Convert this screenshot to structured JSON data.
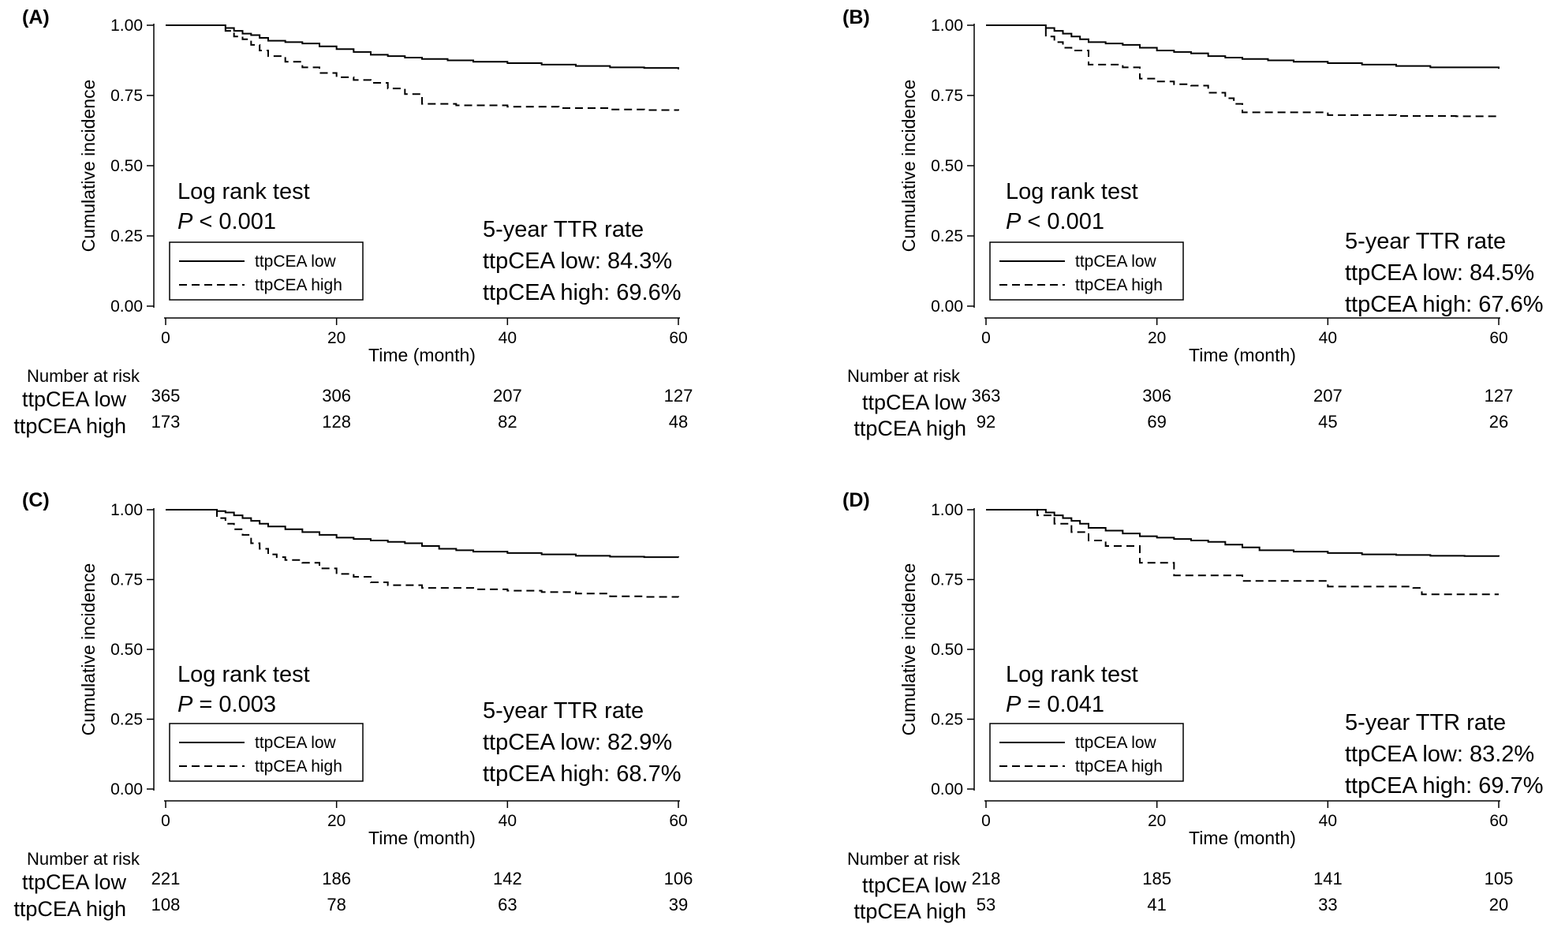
{
  "figure_type": "Kaplan-Meier cumulative incidence curves",
  "colors": {
    "curve": "#000000",
    "axis": "#000000",
    "background": "#ffffff"
  },
  "chart_data": [
    {
      "panel_label": "(A)",
      "type": "line",
      "xlabel": "Time (month)",
      "ylabel": "Cumulative incidence",
      "xlim": [
        0,
        60
      ],
      "ylim": [
        0,
        1
      ],
      "xticks": [
        "0",
        "20",
        "40",
        "60"
      ],
      "yticks": [
        "0.00",
        "0.25",
        "0.50",
        "0.75",
        "1.00"
      ],
      "series": [
        {
          "name": "ttpCEA low",
          "style": "solid",
          "x": [
            0,
            7,
            8,
            9,
            10,
            11,
            12,
            14,
            16,
            18,
            20,
            22,
            24,
            26,
            28,
            30,
            33,
            36,
            40,
            44,
            48,
            52,
            56,
            60
          ],
          "y": [
            1,
            0.99,
            0.98,
            0.97,
            0.965,
            0.955,
            0.945,
            0.94,
            0.935,
            0.925,
            0.915,
            0.905,
            0.895,
            0.89,
            0.885,
            0.88,
            0.875,
            0.87,
            0.865,
            0.86,
            0.855,
            0.85,
            0.848,
            0.843
          ]
        },
        {
          "name": "ttpCEA high",
          "style": "dashed",
          "x": [
            0,
            7,
            8,
            9,
            10,
            11,
            12,
            14,
            16,
            18,
            20,
            22,
            24,
            26,
            28,
            30,
            34,
            40,
            46,
            52,
            56,
            60
          ],
          "y": [
            1,
            0.98,
            0.96,
            0.95,
            0.93,
            0.91,
            0.89,
            0.87,
            0.85,
            0.83,
            0.815,
            0.805,
            0.795,
            0.775,
            0.755,
            0.72,
            0.715,
            0.71,
            0.705,
            0.7,
            0.698,
            0.696
          ]
        }
      ],
      "annotations": {
        "test_title": "Log rank test",
        "p_symbol": "P",
        "p_value_text": " < 0.001",
        "rate_title": "5-year TTR rate",
        "rate_low": "ttpCEA low: 84.3%",
        "rate_high": "ttpCEA high: 69.6%"
      },
      "legend": [
        "ttpCEA low",
        "ttpCEA high"
      ],
      "risk_table": {
        "title": "Number at risk",
        "groups": [
          "ttpCEA low",
          "ttpCEA high"
        ],
        "low": [
          "365",
          "306",
          "207",
          "127"
        ],
        "high": [
          "173",
          "128",
          "82",
          "48"
        ]
      }
    },
    {
      "panel_label": "(B)",
      "type": "line",
      "xlabel": "Time (month)",
      "ylabel": "Cumulative incidence",
      "xlim": [
        0,
        60
      ],
      "ylim": [
        0,
        1
      ],
      "xticks": [
        "0",
        "20",
        "40",
        "60"
      ],
      "yticks": [
        "0.00",
        "0.25",
        "0.50",
        "0.75",
        "1.00"
      ],
      "series": [
        {
          "name": "ttpCEA low",
          "style": "solid",
          "x": [
            0,
            7,
            8,
            9,
            10,
            11,
            12,
            14,
            16,
            18,
            20,
            22,
            24,
            26,
            28,
            30,
            33,
            36,
            40,
            44,
            48,
            52,
            56,
            60
          ],
          "y": [
            1,
            0.99,
            0.98,
            0.97,
            0.96,
            0.95,
            0.94,
            0.935,
            0.93,
            0.92,
            0.91,
            0.905,
            0.9,
            0.89,
            0.885,
            0.88,
            0.875,
            0.87,
            0.865,
            0.86,
            0.855,
            0.85,
            0.85,
            0.845
          ]
        },
        {
          "name": "ttpCEA high",
          "style": "dashed",
          "x": [
            0,
            7,
            8,
            9,
            10,
            12,
            14,
            16,
            18,
            20,
            22,
            24,
            26,
            28,
            29,
            30,
            36,
            40,
            48,
            55,
            60
          ],
          "y": [
            1,
            0.96,
            0.94,
            0.92,
            0.91,
            0.86,
            0.86,
            0.85,
            0.81,
            0.8,
            0.79,
            0.785,
            0.76,
            0.74,
            0.72,
            0.69,
            0.69,
            0.68,
            0.677,
            0.676,
            0.676
          ]
        }
      ],
      "annotations": {
        "test_title": "Log rank test",
        "p_symbol": "P",
        "p_value_text": " < 0.001",
        "rate_title": "5-year TTR rate",
        "rate_low": "ttpCEA low: 84.5%",
        "rate_high": "ttpCEA high: 67.6%"
      },
      "legend": [
        "ttpCEA low",
        "ttpCEA high"
      ],
      "risk_table": {
        "title": "Number at risk",
        "groups": [
          "ttpCEA low",
          "ttpCEA high"
        ],
        "low": [
          "363",
          "306",
          "207",
          "127"
        ],
        "high": [
          "92",
          "69",
          "45",
          "26"
        ]
      }
    },
    {
      "panel_label": "(C)",
      "type": "line",
      "xlabel": "Time (month)",
      "ylabel": "Cumulative incidence",
      "xlim": [
        0,
        60
      ],
      "ylim": [
        0,
        1
      ],
      "xticks": [
        "0",
        "20",
        "40",
        "60"
      ],
      "yticks": [
        "0.00",
        "0.25",
        "0.50",
        "0.75",
        "1.00"
      ],
      "series": [
        {
          "name": "ttpCEA low",
          "style": "solid",
          "x": [
            0,
            6,
            7,
            8,
            9,
            10,
            11,
            12,
            14,
            16,
            18,
            20,
            22,
            24,
            26,
            28,
            30,
            32,
            34,
            36,
            40,
            44,
            48,
            52,
            56,
            60
          ],
          "y": [
            1,
            0.995,
            0.99,
            0.98,
            0.97,
            0.96,
            0.95,
            0.94,
            0.93,
            0.92,
            0.91,
            0.9,
            0.895,
            0.89,
            0.885,
            0.88,
            0.87,
            0.86,
            0.855,
            0.85,
            0.845,
            0.84,
            0.835,
            0.832,
            0.83,
            0.829
          ]
        },
        {
          "name": "ttpCEA high",
          "style": "dashed",
          "x": [
            0,
            6,
            7,
            8,
            9,
            10,
            11,
            12,
            13,
            14,
            16,
            18,
            20,
            22,
            24,
            26,
            30,
            36,
            40,
            44,
            48,
            52,
            56,
            60
          ],
          "y": [
            1,
            0.97,
            0.95,
            0.93,
            0.91,
            0.88,
            0.86,
            0.84,
            0.83,
            0.82,
            0.81,
            0.79,
            0.77,
            0.76,
            0.74,
            0.73,
            0.72,
            0.715,
            0.71,
            0.705,
            0.7,
            0.69,
            0.688,
            0.687
          ]
        }
      ],
      "annotations": {
        "test_title": "Log rank test",
        "p_symbol": "P",
        "p_value_text": " = 0.003",
        "rate_title": "5-year TTR rate",
        "rate_low": "ttpCEA low: 82.9%",
        "rate_high": "ttpCEA high: 68.7%"
      },
      "legend": [
        "ttpCEA low",
        "ttpCEA high"
      ],
      "risk_table": {
        "title": "Number at risk",
        "groups": [
          "ttpCEA low",
          "ttpCEA high"
        ],
        "low": [
          "221",
          "186",
          "142",
          "106"
        ],
        "high": [
          "108",
          "78",
          "63",
          "39"
        ]
      }
    },
    {
      "panel_label": "(D)",
      "type": "line",
      "xlabel": "Time (month)",
      "ylabel": "Cumulative incidence",
      "xlim": [
        0,
        60
      ],
      "ylim": [
        0,
        1
      ],
      "xticks": [
        "0",
        "20",
        "40",
        "60"
      ],
      "yticks": [
        "0.00",
        "0.25",
        "0.50",
        "0.75",
        "1.00"
      ],
      "series": [
        {
          "name": "ttpCEA low",
          "style": "solid",
          "x": [
            0,
            7,
            8,
            9,
            10,
            11,
            12,
            14,
            16,
            18,
            20,
            22,
            24,
            26,
            28,
            30,
            32,
            36,
            40,
            44,
            48,
            52,
            56,
            60
          ],
          "y": [
            1,
            0.99,
            0.98,
            0.97,
            0.96,
            0.95,
            0.935,
            0.925,
            0.915,
            0.905,
            0.9,
            0.895,
            0.89,
            0.885,
            0.875,
            0.865,
            0.855,
            0.85,
            0.845,
            0.84,
            0.838,
            0.835,
            0.834,
            0.832
          ]
        },
        {
          "name": "ttpCEA high",
          "style": "dashed",
          "x": [
            0,
            6,
            8,
            10,
            12,
            14,
            16,
            18,
            20,
            22,
            24,
            28,
            30,
            36,
            40,
            48,
            50,
            51,
            60
          ],
          "y": [
            1,
            0.98,
            0.95,
            0.92,
            0.89,
            0.87,
            0.87,
            0.81,
            0.81,
            0.765,
            0.765,
            0.765,
            0.745,
            0.745,
            0.725,
            0.725,
            0.72,
            0.697,
            0.697
          ]
        }
      ],
      "annotations": {
        "test_title": "Log rank test",
        "p_symbol": "P",
        "p_value_text": " = 0.041",
        "rate_title": "5-year TTR rate",
        "rate_low": "ttpCEA low: 83.2%",
        "rate_high": "ttpCEA high: 69.7%"
      },
      "legend": [
        "ttpCEA low",
        "ttpCEA high"
      ],
      "risk_table": {
        "title": "Number at risk",
        "groups": [
          "ttpCEA low",
          "ttpCEA high"
        ],
        "low": [
          "218",
          "185",
          "141",
          "105"
        ],
        "high": [
          "53",
          "41",
          "33",
          "20"
        ]
      }
    }
  ]
}
